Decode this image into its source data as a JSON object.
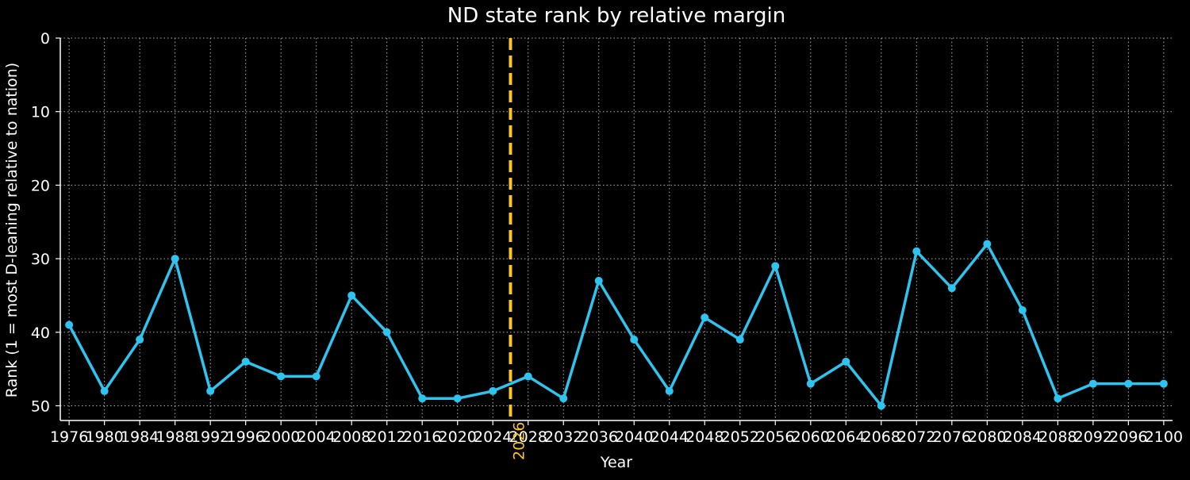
{
  "chart_data": {
    "type": "line",
    "title": "ND state rank by relative margin",
    "xlabel": "Year",
    "ylabel": "Rank (1 = most D-leaning relative to nation)",
    "x": [
      1976,
      1980,
      1984,
      1988,
      1992,
      1996,
      2000,
      2004,
      2008,
      2012,
      2016,
      2020,
      2024,
      2028,
      2032,
      2036,
      2040,
      2044,
      2048,
      2052,
      2056,
      2060,
      2064,
      2068,
      2072,
      2076,
      2080,
      2084,
      2088,
      2092,
      2096,
      2100
    ],
    "series": [
      {
        "values": [
          39,
          48,
          41,
          30,
          48,
          44,
          46,
          46,
          35,
          40,
          49,
          49,
          48,
          46,
          49,
          33,
          41,
          48,
          38,
          41,
          31,
          47,
          44,
          50,
          29,
          34,
          28,
          37,
          49,
          47,
          47,
          47
        ],
        "color": "#2ec4f0"
      }
    ],
    "xlim": [
      1975,
      2101
    ],
    "ylim": [
      52,
      0
    ],
    "y_inverted": true,
    "yticks": [
      0,
      10,
      20,
      30,
      40,
      50
    ],
    "xticks": [
      1976,
      1980,
      1984,
      1988,
      1992,
      1996,
      2000,
      2004,
      2008,
      2012,
      2016,
      2020,
      2024,
      2028,
      2032,
      2036,
      2040,
      2044,
      2048,
      2052,
      2056,
      2060,
      2064,
      2068,
      2072,
      2076,
      2080,
      2084,
      2088,
      2092,
      2096,
      2100
    ],
    "grid": true,
    "reference_line": {
      "x": 2026,
      "label": "2026",
      "color": "#ffc61a",
      "style": "dashed"
    },
    "background_color": "#000000",
    "text_color": "#ffffff"
  }
}
